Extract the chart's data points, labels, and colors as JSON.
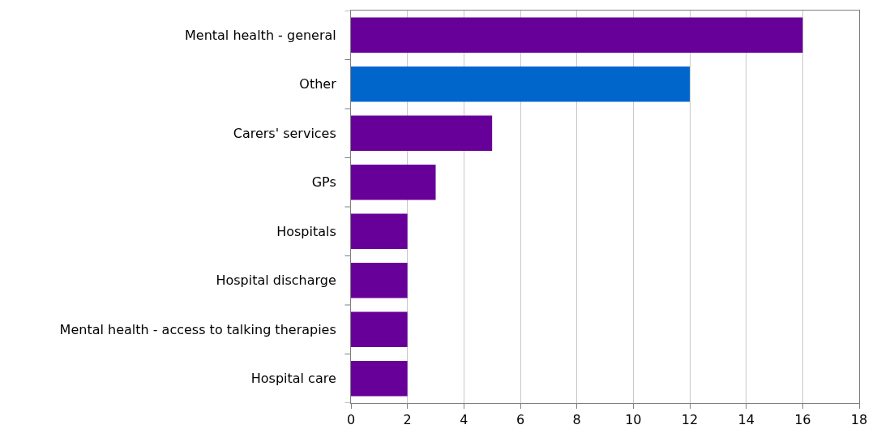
{
  "chart_data": {
    "type": "bar",
    "orientation": "horizontal",
    "categories": [
      "Mental health - general",
      "Other",
      "Carers' services",
      "GPs",
      "Hospitals",
      "Hospital discharge",
      "Mental health - access to talking therapies",
      "Hospital care"
    ],
    "values": [
      16,
      12,
      5,
      3,
      2,
      2,
      2,
      2
    ],
    "colors": [
      "#660099",
      "#0066cc",
      "#660099",
      "#660099",
      "#660099",
      "#660099",
      "#660099",
      "#660099"
    ],
    "xlim": [
      0,
      18
    ],
    "xticks": [
      0,
      2,
      4,
      6,
      8,
      10,
      12,
      14,
      16,
      18
    ],
    "grid": "x",
    "legend": false
  }
}
